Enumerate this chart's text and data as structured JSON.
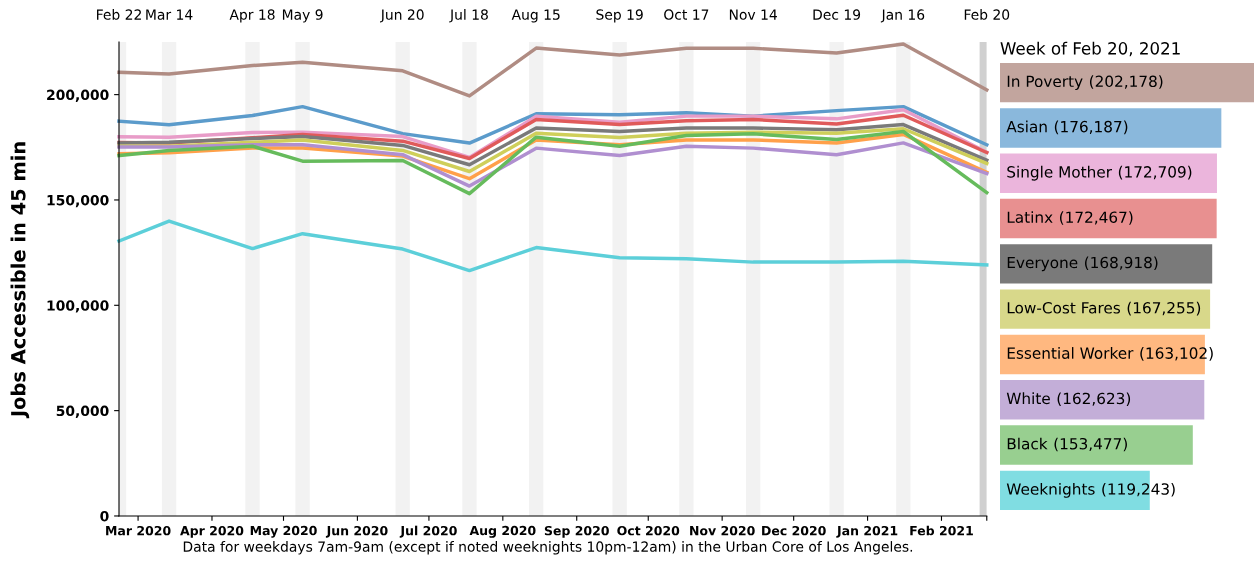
{
  "chart_data": [
    {
      "type": "line",
      "ylabel": "Jobs Accessible in 45 min",
      "x": [
        "2020-02-22",
        "2020-03-14",
        "2020-04-18",
        "2020-05-09",
        "2020-06-20",
        "2020-07-18",
        "2020-08-15",
        "2020-09-19",
        "2020-10-17",
        "2020-11-14",
        "2020-12-19",
        "2021-01-16",
        "2021-02-20"
      ],
      "series": [
        {
          "color": "#b08c83",
          "values": [
            210600,
            209800,
            213800,
            215400,
            211300,
            199400,
            222100,
            218800,
            222000,
            222000,
            219800,
            224000,
            202200
          ]
        },
        {
          "color": "#5b9bcb",
          "values": [
            187400,
            185700,
            190100,
            194300,
            181500,
            177000,
            190900,
            190400,
            191400,
            189800,
            192400,
            194300,
            176200
          ]
        },
        {
          "color": "#e89cc8",
          "values": [
            180000,
            179800,
            182000,
            182200,
            180100,
            170200,
            189700,
            186900,
            189800,
            189800,
            188500,
            192800,
            172700
          ]
        },
        {
          "color": "#e05a5a",
          "values": [
            177300,
            177000,
            179500,
            181100,
            177900,
            169700,
            188200,
            185800,
            187600,
            188200,
            186100,
            190200,
            172500
          ]
        },
        {
          "color": "#7a7a7a",
          "values": [
            177000,
            177400,
            179200,
            180100,
            175900,
            166700,
            184200,
            182500,
            184200,
            184200,
            183300,
            185800,
            168900
          ]
        },
        {
          "color": "#cfcf5a",
          "values": [
            175500,
            175500,
            177400,
            178500,
            173500,
            163500,
            181700,
            179600,
            181700,
            182200,
            181700,
            183800,
            167300
          ]
        },
        {
          "color": "#ffa04a",
          "values": [
            171900,
            172400,
            174700,
            174700,
            170800,
            160100,
            178500,
            176200,
            178500,
            178500,
            177000,
            181100,
            163100
          ]
        },
        {
          "color": "#b08fd0",
          "values": [
            175100,
            175100,
            176200,
            176200,
            171500,
            156600,
            174600,
            171100,
            175500,
            174600,
            171500,
            177100,
            162600
          ]
        },
        {
          "color": "#66bb5c",
          "values": [
            171100,
            173500,
            175500,
            168400,
            168700,
            153000,
            179800,
            175500,
            180600,
            181400,
            178700,
            182500,
            153500
          ]
        },
        {
          "color": "#5ccfd9",
          "values": [
            130500,
            140000,
            126900,
            134000,
            126700,
            116500,
            127400,
            122600,
            122100,
            120500,
            120500,
            120900,
            119200
          ]
        }
      ],
      "xlim": [
        "2020-02-22",
        "2021-02-20"
      ],
      "xticks": [
        {
          "value": "2020-03-01",
          "label": "Mar 2020"
        },
        {
          "value": "2020-04-01",
          "label": "Apr 2020"
        },
        {
          "value": "2020-05-01",
          "label": "May 2020"
        },
        {
          "value": "2020-06-01",
          "label": "Jun 2020"
        },
        {
          "value": "2020-07-01",
          "label": "Jul 2020"
        },
        {
          "value": "2020-08-01",
          "label": "Aug 2020"
        },
        {
          "value": "2020-09-01",
          "label": "Sep 2020"
        },
        {
          "value": "2020-10-01",
          "label": "Oct 2020"
        },
        {
          "value": "2020-11-01",
          "label": "Nov 2020"
        },
        {
          "value": "2020-12-01",
          "label": "Dec 2020"
        },
        {
          "value": "2021-01-01",
          "label": "Jan 2021"
        },
        {
          "value": "2021-02-01",
          "label": "Feb 2021"
        },
        {
          "value": "2021-02-20",
          "label": null
        }
      ],
      "x2lim": [
        "2020-02-22",
        "2021-02-20"
      ],
      "x2ticks": [
        {
          "value": "2020-02-22",
          "label": "Feb 22"
        },
        {
          "value": "2020-03-14",
          "label": "Mar 14"
        },
        {
          "value": "2020-04-18",
          "label": "Apr 18"
        },
        {
          "value": "2020-05-09",
          "label": "May 9"
        },
        {
          "value": "2020-06-20",
          "label": "Jun 20"
        },
        {
          "value": "2020-07-18",
          "label": "Jul 18"
        },
        {
          "value": "2020-08-15",
          "label": "Aug 15"
        },
        {
          "value": "2020-09-19",
          "label": "Sep 19"
        },
        {
          "value": "2020-10-17",
          "label": "Oct 17"
        },
        {
          "value": "2020-11-14",
          "label": "Nov 14"
        },
        {
          "value": "2020-12-19",
          "label": "Dec 19"
        },
        {
          "value": "2021-01-16",
          "label": "Jan 16"
        },
        {
          "value": "2021-02-20",
          "label": "Feb 20"
        }
      ],
      "ylim": [
        0,
        225000
      ],
      "yticks": [
        {
          "value": 0,
          "label": "0"
        },
        {
          "value": 50000,
          "label": "50,000"
        },
        {
          "value": 100000,
          "label": "100,000"
        },
        {
          "value": 150000,
          "label": "150,000"
        },
        {
          "value": 200000,
          "label": "200,000"
        }
      ],
      "bands": [
        {
          "axis": "x",
          "from": "2020-02-22",
          "to": "2020-02-25",
          "color": "#f2f2f2"
        },
        {
          "axis": "x",
          "from": "2020-03-11",
          "to": "2020-03-17",
          "color": "#f2f2f2"
        },
        {
          "axis": "x",
          "from": "2020-04-15",
          "to": "2020-04-21",
          "color": "#f2f2f2"
        },
        {
          "axis": "x",
          "from": "2020-05-06",
          "to": "2020-05-12",
          "color": "#f2f2f2"
        },
        {
          "axis": "x",
          "from": "2020-06-17",
          "to": "2020-06-23",
          "color": "#f2f2f2"
        },
        {
          "axis": "x",
          "from": "2020-07-15",
          "to": "2020-07-21",
          "color": "#f2f2f2"
        },
        {
          "axis": "x",
          "from": "2020-08-12",
          "to": "2020-08-18",
          "color": "#f2f2f2"
        },
        {
          "axis": "x",
          "from": "2020-09-16",
          "to": "2020-09-22",
          "color": "#f2f2f2"
        },
        {
          "axis": "x",
          "from": "2020-10-14",
          "to": "2020-10-20",
          "color": "#f2f2f2"
        },
        {
          "axis": "x",
          "from": "2020-11-11",
          "to": "2020-11-17",
          "color": "#f2f2f2"
        },
        {
          "axis": "x",
          "from": "2020-12-16",
          "to": "2020-12-22",
          "color": "#f2f2f2"
        },
        {
          "axis": "x",
          "from": "2021-01-13",
          "to": "2021-01-19",
          "color": "#f2f2f2"
        },
        {
          "axis": "x",
          "from": "2021-02-17",
          "to": "2021-02-20",
          "color": "#d0d0d0"
        }
      ],
      "annotations": [
        "Data for weekdays 7am-9am (except if noted weeknights 10pm-12am) in the Urban Core of Los Angeles."
      ],
      "grid": false,
      "marker": "none",
      "line_style": "solid"
    },
    {
      "type": "bar",
      "orientation": "horizontal",
      "title": "Week of Feb 20, 2021",
      "categories": [
        "In Poverty",
        "Asian",
        "Single Mother",
        "Latinx",
        "Everyone",
        "Low-Cost Fares",
        "Essential Worker",
        "White",
        "Black",
        "Weeknights"
      ],
      "value_labels": [
        "(202,178)",
        "(176,187)",
        "(172,709)",
        "(172,467)",
        "(168,918)",
        "(167,255)",
        "(163,102)",
        "(162,623)",
        "(153,477)",
        "(119,243)"
      ],
      "values": [
        202178,
        176187,
        172709,
        172467,
        168918,
        167255,
        163102,
        162623,
        153477,
        119243
      ],
      "colors": [
        "#c2a59e",
        "#8ab8dc",
        "#ebb5dc",
        "#e89090",
        "#7a7a7a",
        "#d8d88a",
        "#ffb880",
        "#c3aed8",
        "#98cf90",
        "#80dde2"
      ],
      "tick_labels": false
    }
  ]
}
